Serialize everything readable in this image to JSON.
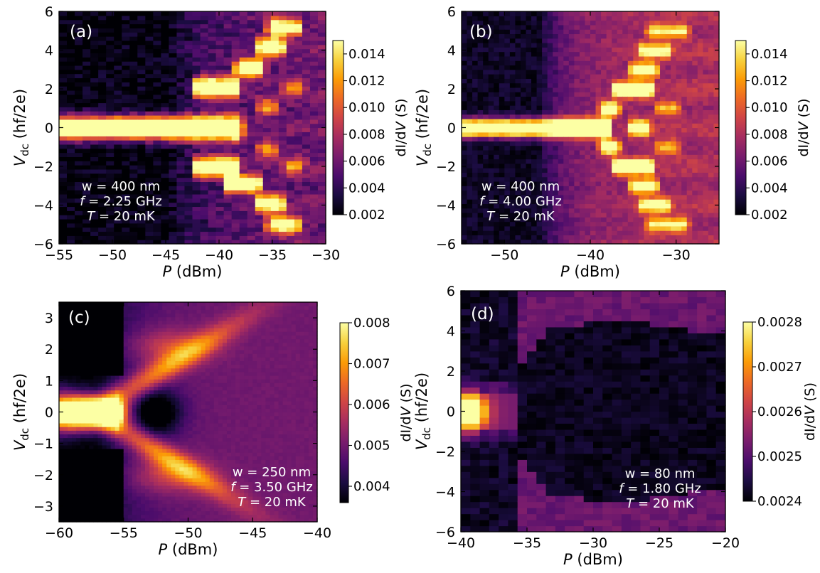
{
  "figure": {
    "colormap": "inferno",
    "colormap_stops": [
      "#000004",
      "#1b0c41",
      "#4a0c6b",
      "#781c6d",
      "#a52c60",
      "#cf4446",
      "#ed6925",
      "#fb9b06",
      "#f7d13d",
      "#fcffa4"
    ]
  },
  "chart_data": [
    {
      "type": "heatmap",
      "panel_label": "(a)",
      "xlabel_italic": "P",
      "xlabel_rest": " (dBm)",
      "ylabel_main": "V",
      "ylabel_sub": "dc",
      "ylabel_rest": " (hf/2e)",
      "xlim": [
        -55,
        -30
      ],
      "ylim": [
        -6,
        6
      ],
      "xticks": [
        -55,
        -50,
        -45,
        -40,
        -35,
        -30
      ],
      "yticks": [
        -6,
        -4,
        -2,
        0,
        2,
        4,
        6
      ],
      "xtick_labels": [
        "−55",
        "−50",
        "−45",
        "−40",
        "−35",
        "−30"
      ],
      "ytick_labels": [
        "−6",
        "−4",
        "−2",
        "0",
        "2",
        "4",
        "6"
      ],
      "colorbar": {
        "label_prefix": "dI/d",
        "label_italic": "V",
        "label_suffix": " (S)",
        "range": [
          0.002,
          0.015
        ],
        "ticks": [
          0.002,
          0.004,
          0.006,
          0.008,
          0.01,
          0.012,
          0.014
        ],
        "tick_labels": [
          "0.002",
          "0.004",
          "0.006",
          "0.008",
          "0.010",
          "0.012",
          "0.014"
        ]
      },
      "annotation": {
        "line1": "w = 400 nm",
        "line2_italic": "f",
        "line2_rest": " = 2.25 GHz",
        "line3_italic": "T",
        "line3_rest": " = 20 mK"
      },
      "model": {
        "grid": [
          34,
          56
        ],
        "base": 0.0022,
        "threshold": -45,
        "rise": 0.0035,
        "rise_scale": 4,
        "oscillation": 0.18,
        "zero_extent": -38.3,
        "zero_width": 0.45,
        "stripes": 0.0025,
        "features": [
          {
            "x0": -55,
            "x1": -38.3,
            "y": 0,
            "w": 0.4,
            "amp": 0.02
          },
          {
            "x0": -42,
            "x1": -38.5,
            "y": 2.1,
            "w": 0.35,
            "amp": 0.016
          },
          {
            "x0": -42,
            "x1": -38.5,
            "y": -2,
            "w": 0.35,
            "amp": 0.016
          },
          {
            "x0": -38,
            "x1": -36.2,
            "y": 3.1,
            "w": 0.3,
            "amp": 0.016
          },
          {
            "x0": -39,
            "x1": -36.5,
            "y": -2.9,
            "w": 0.3,
            "amp": 0.016
          },
          {
            "x0": -36,
            "x1": -34.3,
            "y": 4.2,
            "w": 0.3,
            "amp": 0.015
          },
          {
            "x0": -36,
            "x1": -34.3,
            "y": -3.9,
            "w": 0.3,
            "amp": 0.014
          },
          {
            "x0": -35,
            "x1": -32.8,
            "y": 5.2,
            "w": 0.3,
            "amp": 0.013
          },
          {
            "x0": -35,
            "x1": -32.8,
            "y": -5,
            "w": 0.3,
            "amp": 0.012
          },
          {
            "x0": -36,
            "x1": -35,
            "y": 1.1,
            "w": 0.3,
            "amp": 0.007
          },
          {
            "x0": -36,
            "x1": -35,
            "y": -1.1,
            "w": 0.3,
            "amp": 0.007
          },
          {
            "x0": -33.5,
            "x1": -32.5,
            "y": 2,
            "w": 0.3,
            "amp": 0.006
          },
          {
            "x0": -33.5,
            "x1": -32.5,
            "y": -2,
            "w": 0.3,
            "amp": 0.006
          }
        ]
      }
    },
    {
      "type": "heatmap",
      "panel_label": "(b)",
      "xlabel_italic": "P",
      "xlabel_rest": " (dBm)",
      "ylabel_main": "V",
      "ylabel_sub": "dc",
      "ylabel_rest": " (hf/2e)",
      "xlim": [
        -55,
        -25
      ],
      "ylim": [
        -6,
        6
      ],
      "xticks": [
        -50,
        -40,
        -30
      ],
      "yticks": [
        -6,
        -4,
        -2,
        0,
        2,
        4,
        6
      ],
      "xtick_labels": [
        "−50",
        "−40",
        "−30"
      ],
      "ytick_labels": [
        "−6",
        "−4",
        "−2",
        "0",
        "2",
        "4",
        "6"
      ],
      "colorbar": {
        "label_prefix": "dI/d",
        "label_italic": "V",
        "label_suffix": " (S)",
        "range": [
          0.002,
          0.015
        ],
        "ticks": [
          0.002,
          0.004,
          0.006,
          0.008,
          0.01,
          0.012,
          0.014
        ],
        "tick_labels": [
          "0.002",
          "0.004",
          "0.006",
          "0.008",
          "0.010",
          "0.012",
          "0.014"
        ]
      },
      "annotation": {
        "line1": "w = 400 nm",
        "line2_italic": "f",
        "line2_rest": " = 4.00 GHz",
        "line3_italic": "T",
        "line3_rest": " = 20 mK"
      },
      "model": {
        "grid": [
          48,
          52
        ],
        "base": 0.0028,
        "threshold": -46,
        "rise": 0.0045,
        "rise_scale": 3,
        "oscillation": 0.15,
        "zero_extent": -38,
        "zero_width": 0.3,
        "stripes": 0.0015,
        "features": [
          {
            "x0": -55,
            "x1": -38,
            "y": 0,
            "w": 0.3,
            "amp": 0.02
          },
          {
            "x0": -38.5,
            "x1": -37,
            "y": 1,
            "w": 0.25,
            "amp": 0.012
          },
          {
            "x0": -38.5,
            "x1": -37,
            "y": -1,
            "w": 0.25,
            "amp": 0.012
          },
          {
            "x0": -37,
            "x1": -33,
            "y": 2,
            "w": 0.25,
            "amp": 0.014
          },
          {
            "x0": -37,
            "x1": -33,
            "y": -2,
            "w": 0.25,
            "amp": 0.014
          },
          {
            "x0": -35,
            "x1": -33.5,
            "y": 0,
            "w": 0.25,
            "amp": 0.014
          },
          {
            "x0": -35,
            "x1": -32.5,
            "y": 3,
            "w": 0.25,
            "amp": 0.011
          },
          {
            "x0": -35,
            "x1": -32.5,
            "y": -3,
            "w": 0.25,
            "amp": 0.011
          },
          {
            "x0": -34,
            "x1": -31,
            "y": 4,
            "w": 0.25,
            "amp": 0.009
          },
          {
            "x0": -34,
            "x1": -31,
            "y": -4,
            "w": 0.25,
            "amp": 0.009
          },
          {
            "x0": -33,
            "x1": -29,
            "y": 5,
            "w": 0.25,
            "amp": 0.008
          },
          {
            "x0": -33,
            "x1": -29,
            "y": -5,
            "w": 0.25,
            "amp": 0.008
          },
          {
            "x0": -32,
            "x1": -30,
            "y": 1,
            "w": 0.25,
            "amp": 0.006
          },
          {
            "x0": -32,
            "x1": -30,
            "y": -1,
            "w": 0.25,
            "amp": 0.006
          }
        ]
      }
    },
    {
      "type": "heatmap",
      "panel_label": "(c)",
      "xlabel_italic": "P",
      "xlabel_rest": " (dBm)",
      "ylabel_main": "V",
      "ylabel_sub": "dc",
      "ylabel_rest": " (hf/2e)",
      "xlim": [
        -60,
        -40
      ],
      "ylim": [
        -3.5,
        3.5
      ],
      "xticks": [
        -60,
        -55,
        -50,
        -45,
        -40
      ],
      "yticks": [
        -3,
        -2,
        -1,
        0,
        1,
        2,
        3
      ],
      "xtick_labels": [
        "−60",
        "−55",
        "−50",
        "−45",
        "−40"
      ],
      "ytick_labels": [
        "−3",
        "−2",
        "−1",
        "0",
        "1",
        "2",
        "3"
      ],
      "colorbar": {
        "label_prefix": "dI/d",
        "label_italic": "V",
        "label_suffix": " (S)",
        "range": [
          0.0036,
          0.008
        ],
        "ticks": [
          0.004,
          0.005,
          0.006,
          0.007,
          0.008
        ],
        "tick_labels": [
          "0.004",
          "0.005",
          "0.006",
          "0.007",
          "0.008"
        ]
      },
      "annotation": {
        "line1": "w = 250 nm",
        "line2_italic": "f",
        "line2_rest": " = 3.50 GHz",
        "line3_italic": "T",
        "line3_rest": " = 20 mK"
      },
      "model": {
        "grid": [
          60,
          60
        ],
        "base": 0.0036,
        "smooth": true,
        "features": []
      }
    },
    {
      "type": "heatmap",
      "panel_label": "(d)",
      "xlabel_italic": "P",
      "xlabel_rest": " (dBm)",
      "ylabel_main": "V",
      "ylabel_sub": "dc",
      "ylabel_rest": " (hf/2e)",
      "xlim": [
        -40,
        -20
      ],
      "ylim": [
        -6,
        6
      ],
      "xticks": [
        -40,
        -35,
        -30,
        -25,
        -20
      ],
      "yticks": [
        -6,
        -4,
        -2,
        0,
        2,
        4,
        6
      ],
      "xtick_labels": [
        "−40",
        "−35",
        "−30",
        "−25",
        "−20"
      ],
      "ytick_labels": [
        "−6",
        "−4",
        "−2",
        "0",
        "2",
        "4",
        "6"
      ],
      "colorbar": {
        "label_prefix": "dI/d",
        "label_italic": "V",
        "label_suffix": " (S)",
        "range": [
          0.0024,
          0.0028
        ],
        "ticks": [
          0.0024,
          0.0025,
          0.0026,
          0.0027,
          0.0028
        ],
        "tick_labels": [
          "0.0024",
          "0.0025",
          "0.0026",
          "0.0027",
          "0.0028"
        ]
      },
      "annotation": {
        "line1": "w = 80 nm",
        "line2_italic": "f",
        "line2_rest": " = 1.80 GHz",
        "line3_italic": "T",
        "line3_rest": " = 20 mK"
      },
      "model": {
        "grid": [
          28,
          40
        ],
        "base": 0.0024,
        "diamond": true,
        "features": []
      }
    }
  ]
}
